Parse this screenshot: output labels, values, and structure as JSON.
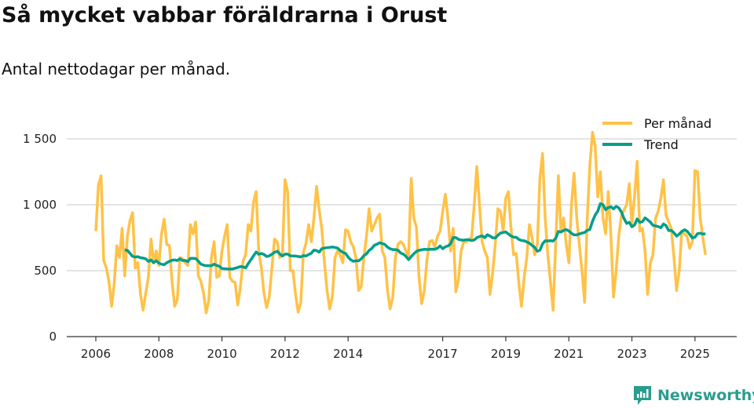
{
  "header": {
    "title": "Så mycket vabbar föräldrarna i Orust",
    "subtitle": "Antal nettodagar per månad."
  },
  "brand": {
    "name": "Newsworthy",
    "color": "#2a9d8f"
  },
  "chart_data": {
    "type": "line",
    "title": "Så mycket vabbar föräldrarna i Orust",
    "subtitle": "Antal nettodagar per månad.",
    "xlabel": "",
    "ylabel": "",
    "start": "2006-01",
    "frequency": "monthly",
    "ylim": [
      0,
      1650
    ],
    "y_ticks": [
      {
        "v": 0,
        "label": "0"
      },
      {
        "v": 500,
        "label": "500"
      },
      {
        "v": 1000,
        "label": "1 000"
      },
      {
        "v": 1500,
        "label": "1 500"
      }
    ],
    "x_ticks": [
      {
        "year": 2006,
        "label": "2006"
      },
      {
        "year": 2008,
        "label": "2008"
      },
      {
        "year": 2010,
        "label": "2010"
      },
      {
        "year": 2012,
        "label": "2012"
      },
      {
        "year": 2014,
        "label": "2014"
      },
      {
        "year": 2017,
        "label": "2017"
      },
      {
        "year": 2019,
        "label": "2019"
      },
      {
        "year": 2021,
        "label": "2021"
      },
      {
        "year": 2023,
        "label": "2023"
      },
      {
        "year": 2025,
        "label": "2025"
      }
    ],
    "grid": true,
    "legend": "top-right",
    "series": [
      {
        "name": "Per månad",
        "color": "#ffc247",
        "values": [
          800,
          1150,
          1220,
          580,
          520,
          420,
          230,
          400,
          690,
          600,
          820,
          460,
          760,
          880,
          940,
          520,
          560,
          320,
          200,
          330,
          450,
          740,
          560,
          650,
          540,
          780,
          890,
          700,
          690,
          420,
          230,
          280,
          600,
          590,
          560,
          540,
          850,
          780,
          870,
          460,
          420,
          330,
          180,
          280,
          600,
          720,
          450,
          460,
          650,
          760,
          850,
          450,
          420,
          410,
          240,
          370,
          570,
          620,
          850,
          800,
          1020,
          1100,
          650,
          520,
          330,
          220,
          300,
          520,
          740,
          720,
          600,
          620,
          1190,
          1100,
          500,
          500,
          320,
          185,
          260,
          640,
          710,
          850,
          720,
          900,
          1140,
          960,
          820,
          560,
          350,
          210,
          300,
          600,
          650,
          620,
          560,
          810,
          800,
          720,
          680,
          600,
          350,
          380,
          600,
          760,
          970,
          800,
          850,
          900,
          930,
          650,
          600,
          350,
          210,
          300,
          600,
          700,
          720,
          700,
          650,
          600,
          1200,
          900,
          830,
          450,
          250,
          350,
          580,
          720,
          730,
          680,
          760,
          800,
          950,
          1080,
          900,
          650,
          820,
          340,
          430,
          650,
          720,
          720,
          740,
          750,
          1000,
          1290,
          1000,
          720,
          650,
          600,
          320,
          480,
          700,
          970,
          950,
          800,
          1050,
          1100,
          820,
          620,
          630,
          400,
          230,
          450,
          600,
          850,
          750,
          620,
          700,
          1200,
          1390,
          900,
          620,
          420,
          200,
          700,
          1220,
          800,
          900,
          700,
          560,
          1000,
          1240,
          900,
          700,
          500,
          260,
          900,
          1300,
          1550,
          1450,
          1060,
          1250,
          900,
          780,
          1100,
          770,
          300,
          500,
          760,
          920,
          960,
          1000,
          1160,
          850,
          1060,
          1330,
          800,
          820,
          650,
          320,
          560,
          620,
          900,
          950,
          1050,
          1190,
          920,
          870,
          820,
          600,
          350,
          500,
          800,
          780,
          760,
          670,
          720,
          1260,
          1250,
          900,
          750,
          620
        ]
      },
      {
        "name": "Trend",
        "color": "#009e8a",
        "method": "12-month rolling mean of Per månad"
      }
    ]
  }
}
